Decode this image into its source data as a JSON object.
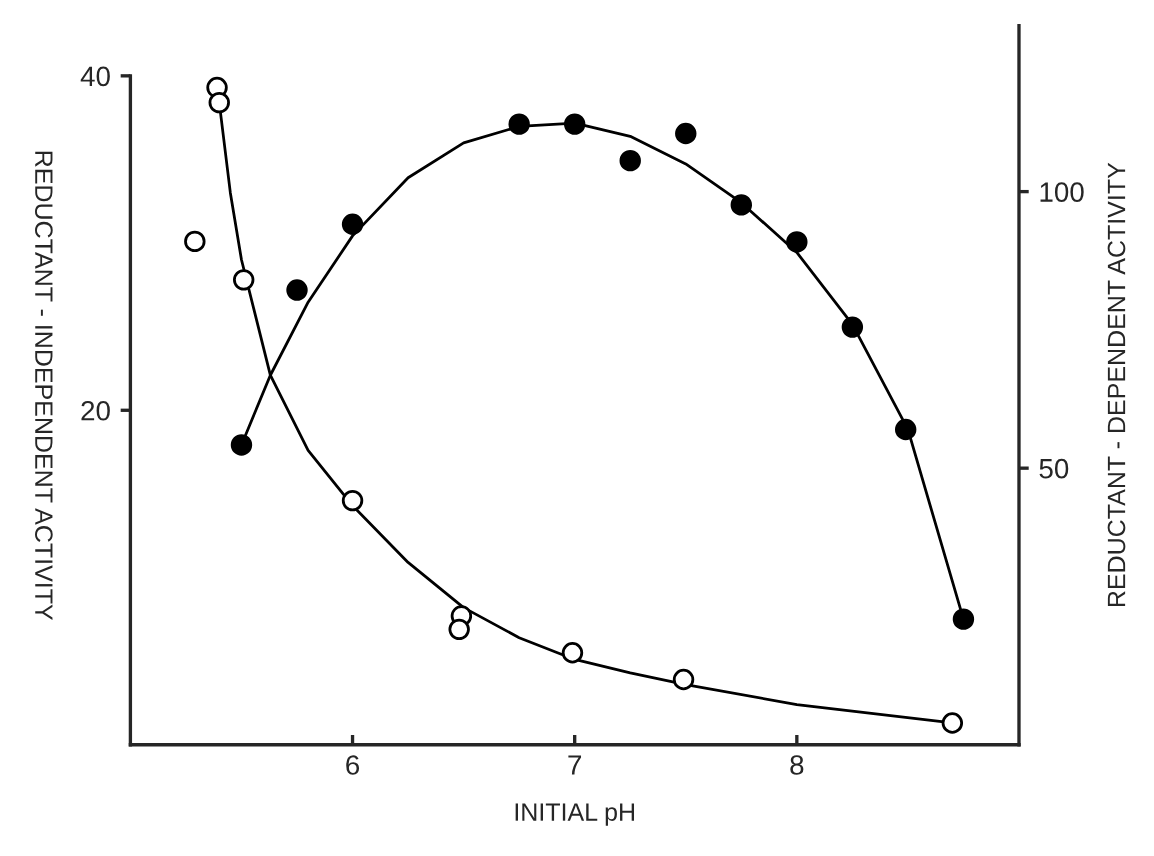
{
  "chart_data": {
    "type": "scatter",
    "xlabel": "INITIAL pH",
    "ylabel": "REDUCTANT - INDEPENDENT ACTIVITY",
    "y2label": "REDUCTANT - DEPENDENT ACTIVITY",
    "xlim": [
      5,
      9
    ],
    "xticks": [
      6,
      7,
      8
    ],
    "ylim": [
      0,
      43
    ],
    "yticks": [
      20,
      40
    ],
    "y2lim": [
      0,
      130
    ],
    "y2ticks": [
      50,
      100
    ],
    "grid": false,
    "legend": false,
    "marker": "circle",
    "series": [
      {
        "color": "#ffffff",
        "x": [
          5.29,
          5.39,
          5.4,
          5.51,
          6.0,
          6.49,
          6.48,
          6.99,
          7.49,
          8.7
        ],
        "values": [
          30.1,
          39.3,
          38.4,
          27.8,
          14.6,
          7.7,
          6.9,
          5.5,
          3.9,
          1.3
        ]
      },
      {
        "type": "line",
        "color": "#000000",
        "marker": "none",
        "x": [
          5.4,
          5.45,
          5.5,
          5.63,
          5.8,
          6.0,
          6.25,
          6.5,
          6.75,
          7.0,
          7.25,
          7.5,
          8.0,
          8.7
        ],
        "values": [
          38.4,
          33.0,
          29.0,
          22.1,
          17.6,
          14.3,
          10.9,
          8.2,
          6.4,
          5.1,
          4.3,
          3.6,
          2.4,
          1.3
        ]
      },
      {
        "color": "#000000",
        "axis": "y2",
        "x": [
          5.5,
          5.75,
          6.0,
          6.75,
          7.0,
          7.25,
          7.5,
          7.75,
          8.0,
          8.25,
          8.49,
          8.75
        ],
        "values": [
          54.2,
          82.2,
          94.1,
          112.2,
          112.2,
          105.6,
          110.5,
          97.6,
          90.9,
          75.5,
          57.0,
          22.7
        ]
      },
      {
        "type": "line",
        "color": "#000000",
        "axis": "y2",
        "marker": "none",
        "x": [
          5.5,
          5.63,
          5.8,
          6.0,
          6.25,
          6.5,
          6.75,
          7.0,
          7.25,
          7.5,
          7.75,
          8.0,
          8.25,
          8.5,
          8.75
        ],
        "values": [
          54.2,
          66.8,
          80.0,
          92.0,
          102.5,
          108.8,
          111.8,
          112.4,
          110.0,
          105.0,
          98.0,
          89.0,
          76.0,
          57.0,
          22.7
        ]
      }
    ]
  }
}
